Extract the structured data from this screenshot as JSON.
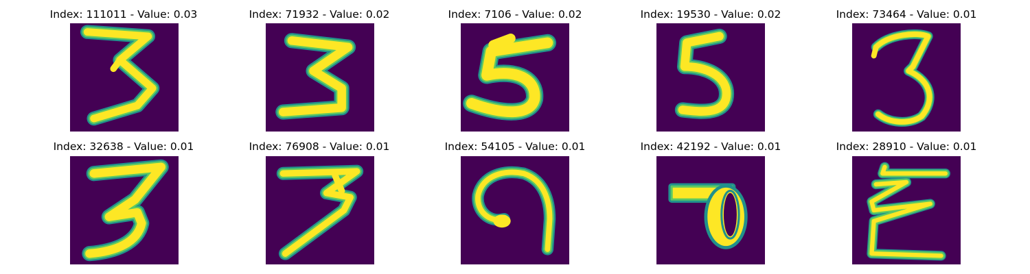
{
  "colors": {
    "background": "#440154",
    "stroke_core": "#fde725",
    "stroke_mid": "#5ec962",
    "stroke_edge": "#21918c"
  },
  "panels": [
    {
      "title": "Index: 111011 - Value: 0.03",
      "index": 111011,
      "value": 0.03,
      "glyph": "3"
    },
    {
      "title": "Index: 71932 - Value: 0.02",
      "index": 71932,
      "value": 0.02,
      "glyph": "3"
    },
    {
      "title": "Index: 7106 - Value: 0.02",
      "index": 7106,
      "value": 0.02,
      "glyph": "5"
    },
    {
      "title": "Index: 19530 - Value: 0.02",
      "index": 19530,
      "value": 0.02,
      "glyph": "5"
    },
    {
      "title": "Index: 73464 - Value: 0.01",
      "index": 73464,
      "value": 0.01,
      "glyph": "3"
    },
    {
      "title": "Index: 32638 - Value: 0.01",
      "index": 32638,
      "value": 0.01,
      "glyph": "3"
    },
    {
      "title": "Index: 76908 - Value: 0.01",
      "index": 76908,
      "value": 0.01,
      "glyph": "3"
    },
    {
      "title": "Index: 54105 - Value: 0.01",
      "index": 54105,
      "value": 0.01,
      "glyph": "9"
    },
    {
      "title": "Index: 42192 - Value: 0.01",
      "index": 42192,
      "value": 0.01,
      "glyph": "7"
    },
    {
      "title": "Index: 28910 - Value: 0.01",
      "index": 28910,
      "value": 0.01,
      "glyph": "3"
    }
  ]
}
